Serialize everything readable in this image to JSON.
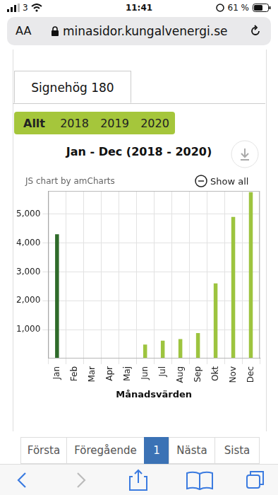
{
  "page": {
    "status_bar": {
      "carrier": "3",
      "time": "11:41",
      "battery": "61 %"
    },
    "address_bar": {
      "text_size": "AA",
      "url": "minasidor.kungalvenergi.se"
    },
    "tab": "Signehög 180",
    "filters": [
      "Allt",
      "2018",
      "2019",
      "2020"
    ],
    "active_filter": "Allt",
    "credit": "JS chart by amCharts",
    "zoom_button": "Show all",
    "pagination": [
      "Första",
      "Föregående",
      "1",
      "Nästa",
      "Sista"
    ],
    "current_page": "1"
  },
  "chart_data": {
    "type": "bar",
    "title": "Jan - Dec (2018 - 2020)",
    "x_label": "Månadsvärden",
    "categories": [
      "Jan",
      "Feb",
      "Mar",
      "Apr",
      "Maj",
      "Jun",
      "Jul",
      "Aug",
      "Sep",
      "Okt",
      "Nov",
      "Dec"
    ],
    "values": [
      4300,
      null,
      null,
      null,
      null,
      480,
      620,
      670,
      880,
      2600,
      4900,
      5760
    ],
    "colors": [
      "#2f6b2a",
      "#9dc43f",
      "#9dc43f",
      "#9dc43f",
      "#9dc43f",
      "#9dc43f",
      "#9dc43f",
      "#9dc43f",
      "#9dc43f",
      "#9dc43f",
      "#9dc43f",
      "#9dc43f"
    ],
    "ylim": [
      0,
      5800
    ],
    "yticks": [
      {
        "value": 1000,
        "label": "1,000"
      },
      {
        "value": 2000,
        "label": "2,000"
      },
      {
        "value": 3000,
        "label": "3,000"
      },
      {
        "value": 4000,
        "label": "4,000"
      },
      {
        "value": 5000,
        "label": "5,000"
      }
    ],
    "grid": true
  }
}
